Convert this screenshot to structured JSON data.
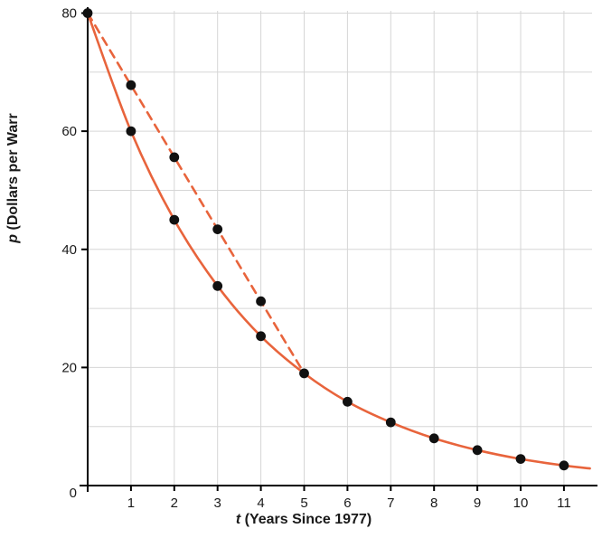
{
  "chart_data": {
    "type": "line",
    "title": "",
    "xlabel_var": "t",
    "xlabel_rest": " (Years Since 1977)",
    "ylabel_var": "p",
    "ylabel_rest": " (Dollars per Warr",
    "xlim": [
      0,
      11.65
    ],
    "ylim": [
      0,
      81
    ],
    "xticks": [
      1,
      2,
      3,
      4,
      5,
      6,
      7,
      8,
      9,
      10,
      11
    ],
    "yticks": [
      20,
      40,
      60,
      80
    ],
    "origin_label": "0",
    "grid": true,
    "grid_x": [
      1,
      2,
      3,
      4,
      5,
      6,
      7,
      8,
      9,
      10,
      11
    ],
    "grid_y": [
      10,
      20,
      30,
      40,
      50,
      60,
      70,
      80
    ],
    "legend": "none",
    "colors": {
      "line": "#e8643c",
      "marker": "#111111",
      "grid": "#d6d6d6",
      "axis": "#000000",
      "text": "#1a1a1a"
    },
    "series": [
      {
        "name": "exponential-decay-curve",
        "style": "solid",
        "smooth": true,
        "marker_points": [
          [
            0,
            80
          ],
          [
            1,
            60
          ],
          [
            2,
            45
          ],
          [
            3,
            33.8
          ],
          [
            4,
            25.3
          ],
          [
            5,
            19
          ],
          [
            6,
            14.2
          ],
          [
            7,
            10.7
          ],
          [
            8,
            8
          ],
          [
            9,
            6
          ],
          [
            10,
            4.5
          ],
          [
            11,
            3.4
          ]
        ],
        "line_points": [
          [
            0,
            80
          ],
          [
            1,
            60
          ],
          [
            2,
            45
          ],
          [
            3,
            33.8
          ],
          [
            4,
            25.3
          ],
          [
            5,
            19
          ],
          [
            6,
            14.2
          ],
          [
            7,
            10.7
          ],
          [
            8,
            8
          ],
          [
            9,
            6
          ],
          [
            10,
            4.5
          ],
          [
            11,
            3.4
          ],
          [
            11.6,
            2.9
          ]
        ]
      },
      {
        "name": "secant-dashed-line",
        "style": "dashed",
        "smooth": false,
        "marker_points": [
          [
            1,
            67.8
          ],
          [
            2,
            55.6
          ],
          [
            3,
            43.4
          ],
          [
            4,
            31.2
          ]
        ],
        "line_points": [
          [
            0,
            80
          ],
          [
            5,
            19
          ]
        ]
      }
    ]
  }
}
